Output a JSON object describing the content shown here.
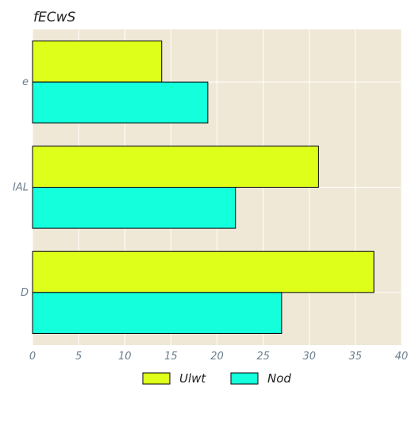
{
  "chart_data": {
    "type": "bar",
    "orientation": "horizontal",
    "title": "fECwS",
    "xlabel": "",
    "ylabel": "",
    "categories": [
      "e",
      "IAL",
      "D"
    ],
    "series": [
      {
        "name": "Ulwt",
        "values": [
          14,
          31,
          37
        ],
        "color": "#deff1a"
      },
      {
        "name": "Nod",
        "values": [
          19,
          22,
          27
        ],
        "color": "#14ffdc"
      }
    ],
    "xlim": [
      0,
      40
    ],
    "xticks": [
      0,
      5,
      10,
      15,
      20,
      25,
      30,
      35,
      40
    ],
    "grid": true,
    "legend_position": "bottom",
    "background_color": "#efe8d6",
    "grid_color": "#ffffff"
  }
}
